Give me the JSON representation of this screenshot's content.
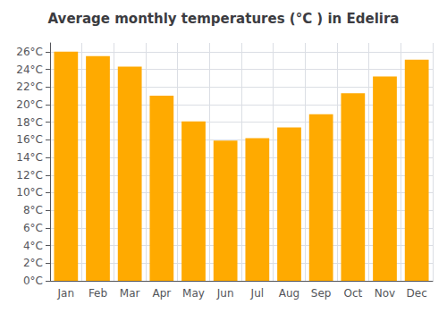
{
  "chart_data": {
    "type": "bar",
    "title": "Average monthly temperatures (°C ) in Edelira",
    "categories": [
      "Jan",
      "Feb",
      "Mar",
      "Apr",
      "May",
      "Jun",
      "Jul",
      "Aug",
      "Sep",
      "Oct",
      "Nov",
      "Dec"
    ],
    "values": [
      26.0,
      25.5,
      24.3,
      21.0,
      18.1,
      15.9,
      16.2,
      17.4,
      18.9,
      21.3,
      23.2,
      25.1
    ],
    "color": "#FFAA00",
    "ylim": [
      0,
      27
    ],
    "yticks": [
      {
        "value": 0,
        "label": "0°C"
      },
      {
        "value": 2,
        "label": "2°C"
      },
      {
        "value": 4,
        "label": "4°C"
      },
      {
        "value": 6,
        "label": "6°C"
      },
      {
        "value": 8,
        "label": "8°C"
      },
      {
        "value": 10,
        "label": "10°C"
      },
      {
        "value": 12,
        "label": "12°C"
      },
      {
        "value": 14,
        "label": "14°C"
      },
      {
        "value": 16,
        "label": "16°C"
      },
      {
        "value": 18,
        "label": "18°C"
      },
      {
        "value": 20,
        "label": "20°C"
      },
      {
        "value": 22,
        "label": "22°C"
      },
      {
        "value": 24,
        "label": "24°C"
      },
      {
        "value": 26,
        "label": "26°C"
      }
    ],
    "grid": true
  }
}
